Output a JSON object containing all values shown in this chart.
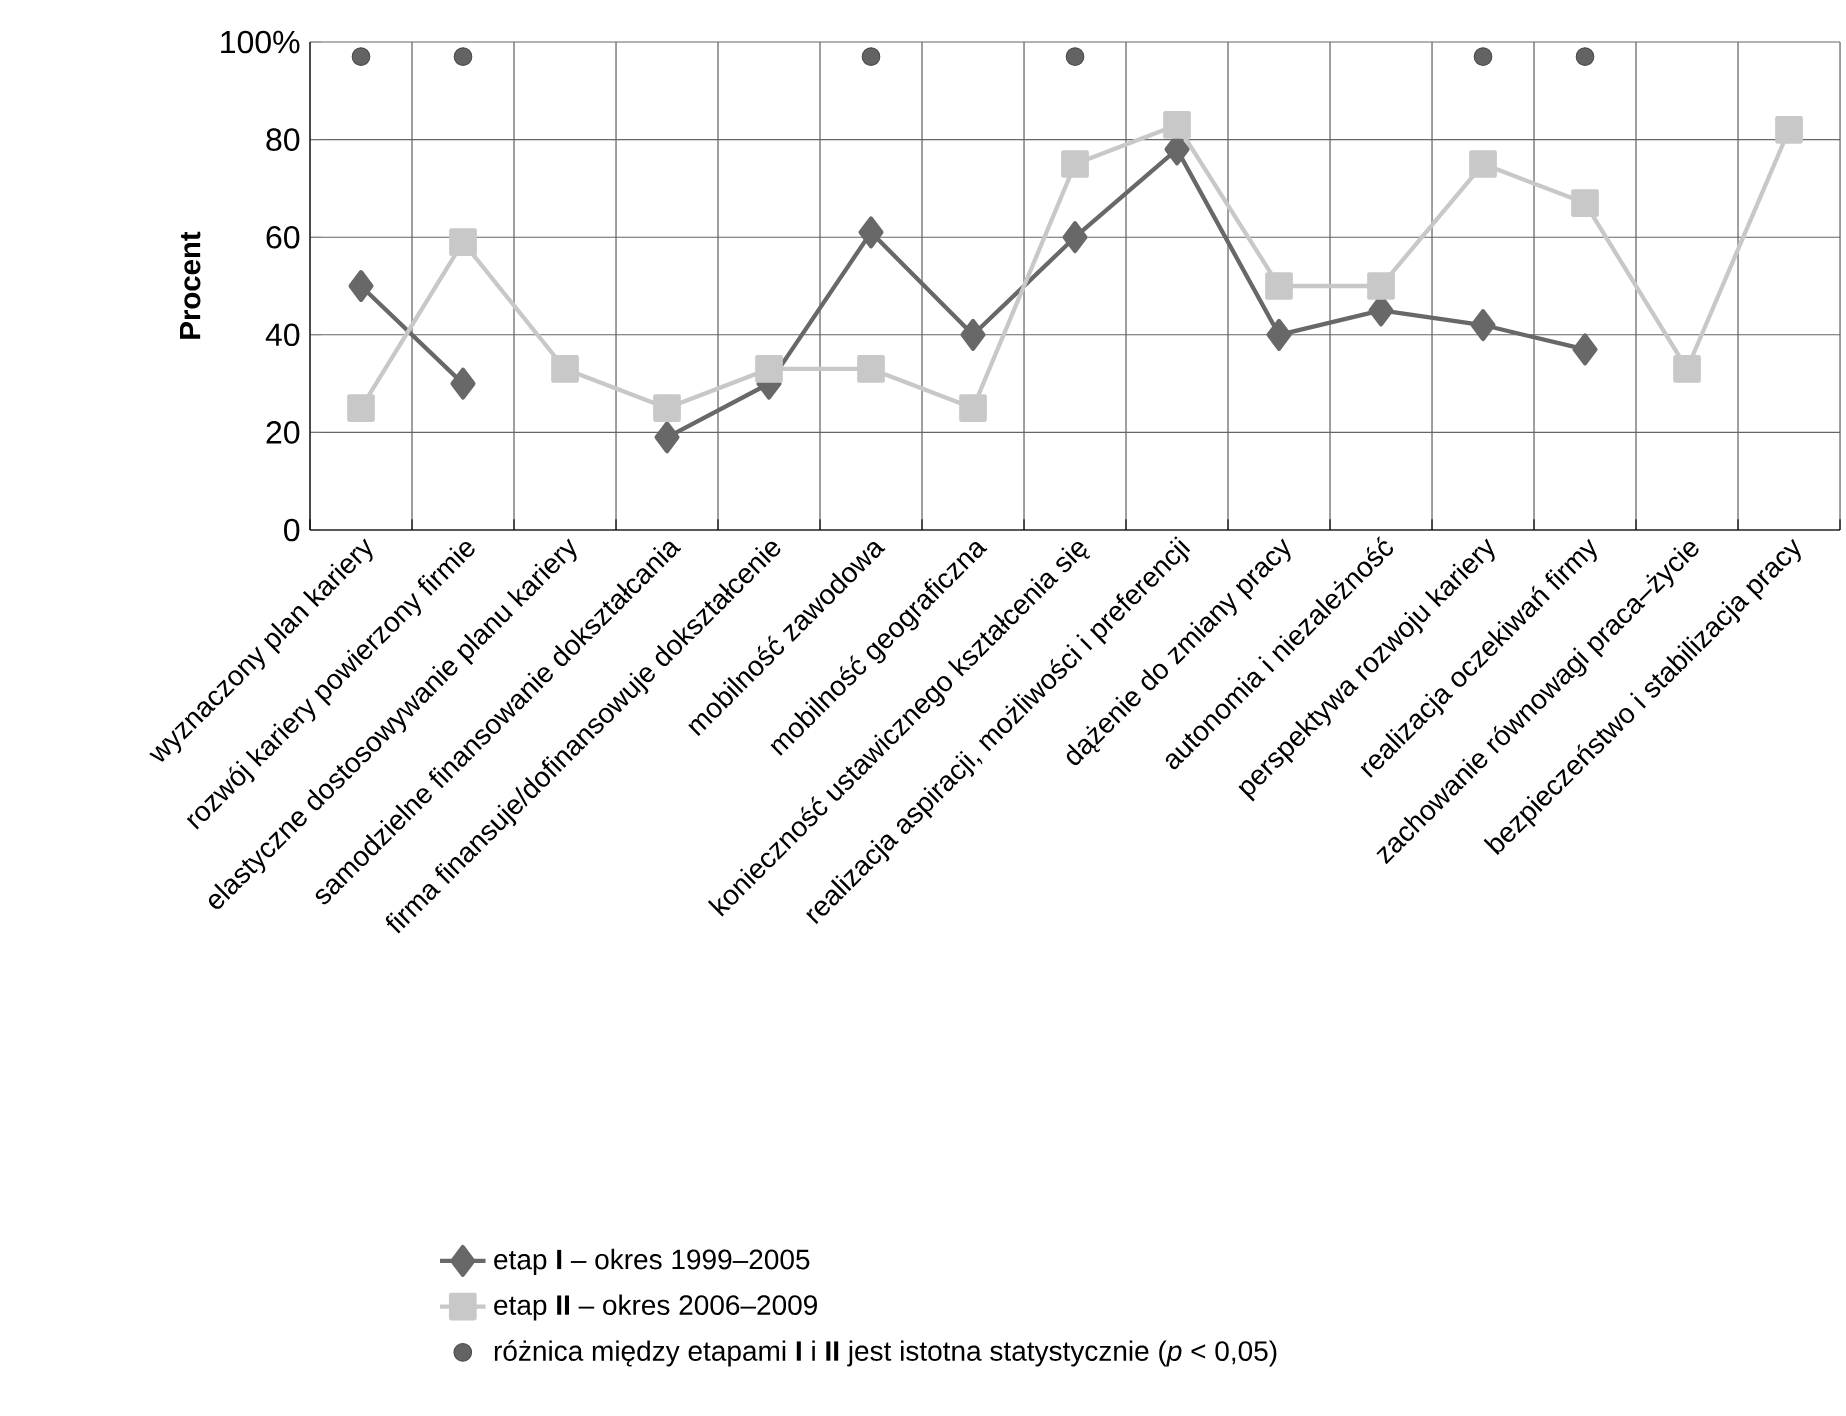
{
  "chart_data": {
    "type": "line",
    "ylabel": "Procent",
    "categories": [
      "wyznaczony plan kariery",
      "rozwój kariery powierzony firmie",
      "elastyczne dostosowywanie planu kariery",
      "samodzielne finansowanie dokształcania",
      "firma finansuje/dofinansowuje dokształcenie",
      "mobilność zawodowa",
      "mobilność geograficzna",
      "konieczność ustawicznego kształcenia się",
      "realizacja aspiracji, możliwości i preferencji",
      "dążenie do zmiany pracy",
      "autonomia i niezależność",
      "perspektywa rozwoju kariery",
      "realizacja oczekiwań firmy",
      "zachowanie równowagi praca–życie",
      "bezpieczeństwo i stabilizacja pracy"
    ],
    "series": [
      {
        "name": "etap **I** – okres 1999–2005",
        "color": "#686868",
        "marker": "diamond",
        "values": [
          50,
          30,
          null,
          19,
          30,
          61,
          40,
          60,
          78,
          40,
          45,
          42,
          37,
          null,
          null
        ]
      },
      {
        "name": "etap **II** – okres 2006–2009",
        "color": "#c8c8c8",
        "marker": "square",
        "values": [
          25,
          59,
          33,
          25,
          33,
          33,
          25,
          75,
          83,
          50,
          50,
          75,
          67,
          33,
          82
        ]
      },
      {
        "name": "różnica między etapami **I** i **II** jest istotna statystycznie (*p* < 0,05)",
        "type": "scatter",
        "color": "#636363",
        "marker": "circle",
        "values": [
          97,
          97,
          null,
          null,
          null,
          97,
          null,
          97,
          null,
          null,
          null,
          97,
          97,
          null,
          null
        ]
      }
    ],
    "ylim": [
      0,
      100
    ],
    "yticks": [
      0,
      20,
      40,
      60,
      80,
      {
        "value": 100,
        "label": "100%"
      }
    ],
    "grid": true,
    "legend": "bottom"
  }
}
